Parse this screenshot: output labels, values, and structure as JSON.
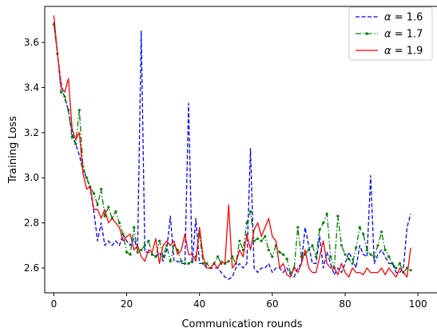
{
  "chart_data": {
    "type": "line",
    "title": "",
    "xlabel": "Communication rounds",
    "ylabel": "Training Loss",
    "xlim": [
      -2.5,
      101.5
    ],
    "ylim": [
      2.49,
      3.76
    ],
    "xticks": [
      0,
      20,
      40,
      60,
      80,
      100
    ],
    "yticks": [
      2.6,
      2.8,
      3.0,
      3.2,
      3.4,
      3.6
    ],
    "xtick_labels": [
      "0",
      "20",
      "40",
      "60",
      "80",
      "100"
    ],
    "ytick_labels": [
      "2.6",
      "2.8",
      "3.0",
      "3.2",
      "3.4",
      "3.6"
    ],
    "grid": false,
    "legend_position": "top-right",
    "series": [
      {
        "name": "α = 1.6",
        "name_parts": {
          "symbol": "α",
          "rest": " = 1.6"
        },
        "color": "#0000ff",
        "style": "dashed",
        "marker": "none",
        "values": [
          3.69,
          3.55,
          3.42,
          3.35,
          3.3,
          3.2,
          3.15,
          3.1,
          3.03,
          3.0,
          2.95,
          2.85,
          2.72,
          2.8,
          2.7,
          2.72,
          2.7,
          2.72,
          2.7,
          2.75,
          2.72,
          2.7,
          2.73,
          2.68,
          3.65,
          2.67,
          2.67,
          2.66,
          2.65,
          2.67,
          2.63,
          2.68,
          2.83,
          2.63,
          2.63,
          2.62,
          2.62,
          3.33,
          2.62,
          2.82,
          2.62,
          2.62,
          2.6,
          2.6,
          2.6,
          2.6,
          2.58,
          2.56,
          2.55,
          2.56,
          2.6,
          2.62,
          2.6,
          2.62,
          3.13,
          2.6,
          2.58,
          2.6,
          2.6,
          2.62,
          2.58,
          2.6,
          2.6,
          2.58,
          2.6,
          2.57,
          2.56,
          2.6,
          2.62,
          2.78,
          2.7,
          2.62,
          2.62,
          2.74,
          2.6,
          2.67,
          2.62,
          2.57,
          2.6,
          2.58,
          2.62,
          2.67,
          2.64,
          2.6,
          2.7,
          2.66,
          2.65,
          3.01,
          2.62,
          2.66,
          2.68,
          2.65,
          2.62,
          2.62,
          2.58,
          2.58,
          2.6,
          2.78,
          2.84
        ]
      },
      {
        "name": "α = 1.7",
        "name_parts": {
          "symbol": "α",
          "rest": " = 1.7"
        },
        "color": "#008000",
        "style": "dashdot",
        "marker": "dot",
        "values": [
          3.68,
          3.55,
          3.38,
          3.36,
          3.3,
          3.18,
          3.15,
          3.3,
          3.05,
          3.0,
          2.96,
          2.93,
          2.88,
          2.95,
          2.83,
          2.87,
          2.82,
          2.85,
          2.8,
          2.75,
          2.67,
          2.66,
          2.78,
          2.67,
          2.68,
          2.7,
          2.72,
          2.66,
          2.65,
          2.72,
          2.65,
          2.7,
          2.63,
          2.7,
          2.68,
          2.63,
          2.62,
          2.62,
          2.63,
          2.65,
          2.75,
          2.62,
          2.62,
          2.6,
          2.62,
          2.65,
          2.62,
          2.62,
          2.63,
          2.65,
          2.62,
          2.72,
          2.68,
          2.8,
          2.85,
          2.72,
          2.73,
          2.72,
          2.74,
          2.68,
          2.65,
          2.7,
          2.67,
          2.66,
          2.64,
          2.58,
          2.6,
          2.78,
          2.65,
          2.66,
          2.68,
          2.7,
          2.65,
          2.77,
          2.8,
          2.84,
          2.65,
          2.6,
          2.83,
          2.7,
          2.66,
          2.64,
          2.62,
          2.69,
          2.78,
          2.75,
          2.68,
          2.66,
          2.65,
          2.7,
          2.76,
          2.68,
          2.65,
          2.62,
          2.6,
          2.62,
          2.58,
          2.6,
          2.59
        ]
      },
      {
        "name": "α = 1.9",
        "name_parts": {
          "symbol": "α",
          "rest": " = 1.9"
        },
        "color": "#ff0000",
        "style": "solid",
        "marker": "none",
        "values": [
          3.72,
          3.55,
          3.4,
          3.38,
          3.44,
          3.22,
          3.17,
          3.2,
          3.02,
          2.95,
          2.96,
          2.86,
          2.86,
          2.82,
          2.86,
          2.8,
          2.82,
          2.8,
          2.78,
          2.72,
          2.74,
          2.75,
          2.68,
          2.7,
          2.65,
          2.63,
          2.68,
          2.67,
          2.73,
          2.62,
          2.7,
          2.72,
          2.7,
          2.72,
          2.66,
          2.68,
          2.75,
          2.66,
          2.66,
          2.63,
          2.78,
          2.65,
          2.6,
          2.6,
          2.62,
          2.6,
          2.63,
          2.62,
          2.88,
          2.6,
          2.62,
          2.68,
          2.65,
          2.75,
          2.68,
          2.77,
          2.8,
          2.74,
          2.78,
          2.82,
          2.74,
          2.72,
          2.6,
          2.62,
          2.57,
          2.56,
          2.6,
          2.58,
          2.62,
          2.68,
          2.6,
          2.58,
          2.58,
          2.65,
          2.72,
          2.62,
          2.6,
          2.6,
          2.57,
          2.62,
          2.58,
          2.56,
          2.6,
          2.58,
          2.58,
          2.57,
          2.6,
          2.58,
          2.58,
          2.58,
          2.6,
          2.57,
          2.6,
          2.58,
          2.56,
          2.6,
          2.58,
          2.56,
          2.69
        ]
      }
    ]
  }
}
